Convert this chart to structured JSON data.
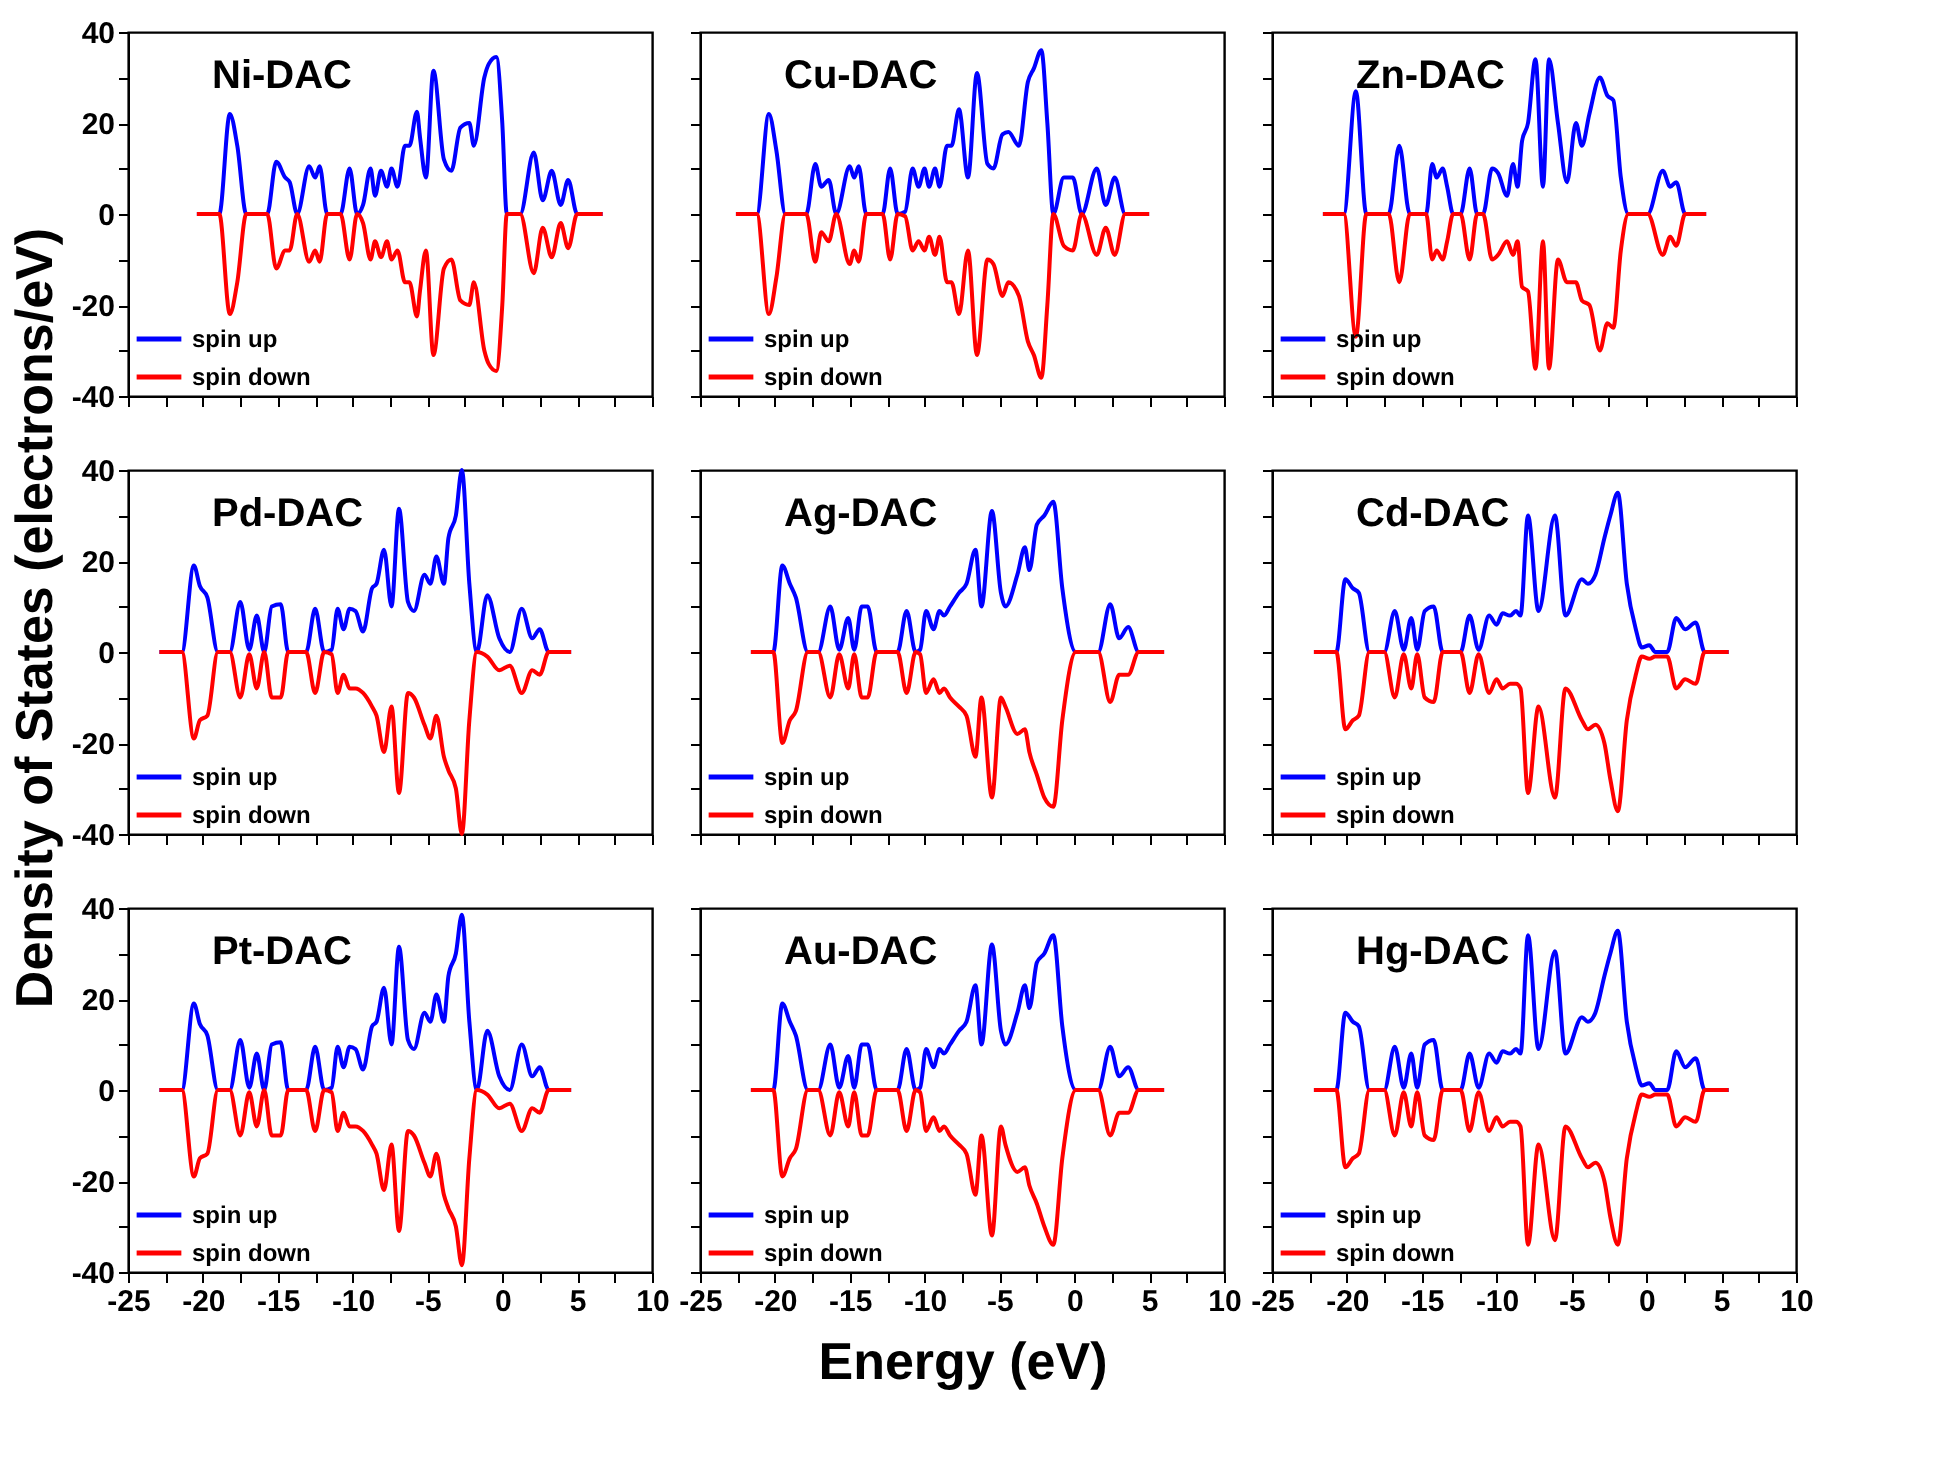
{
  "chart_data": [
    {
      "type": "line",
      "title": "Ni-DAC",
      "tick_labels": "y",
      "legend": "bottom left",
      "xlim": [
        -25,
        10
      ],
      "ylim": [
        -40,
        40
      ],
      "xticks": [
        -25,
        {
          "value": -22.5,
          "label": null
        },
        -20,
        {
          "value": -17.5,
          "label": null
        },
        -15,
        {
          "value": -12.5,
          "label": null
        },
        -10,
        {
          "value": -7.5,
          "label": null
        },
        -5,
        {
          "value": -2.5,
          "label": null
        },
        0,
        {
          "value": 2.5,
          "label": null
        },
        5,
        {
          "value": 7.5,
          "label": null
        },
        10
      ],
      "yticks": [
        -40,
        {
          "value": -30,
          "label": null
        },
        -20,
        {
          "value": -10,
          "label": null
        },
        0,
        {
          "value": 10,
          "label": null
        },
        20,
        {
          "value": 30,
          "label": null
        },
        40
      ],
      "x": [
        -20.4,
        -18.9,
        -18.2,
        -17.7,
        -17.1,
        -15.7,
        -15.1,
        -14.5,
        -14.2,
        -13.7,
        -12.9,
        -12.5,
        -12.2,
        -11.7,
        -10.8,
        -10.2,
        -9.7,
        -9.3,
        -8.8,
        -8.5,
        -8.1,
        -7.7,
        -7.4,
        -7.0,
        -6.5,
        -6.2,
        -5.7,
        -5.5,
        -5.1,
        -4.6,
        -3.9,
        -3.4,
        -2.8,
        -2.2,
        -1.9,
        -1.2,
        -0.9,
        -0.4,
        0.0,
        0.3,
        1.2,
        2.1,
        2.7,
        3.3,
        3.9,
        4.4,
        5.0,
        6.7
      ],
      "series": [
        {
          "name": "spin up",
          "color": "#0000ff",
          "values": [
            0,
            0,
            22,
            15,
            0,
            0,
            11.5,
            8,
            7,
            0,
            10.5,
            8,
            10.5,
            0,
            0,
            10,
            0,
            2,
            10,
            4,
            9.5,
            6,
            10,
            6,
            15,
            15,
            22.5,
            17,
            8,
            31.5,
            12,
            9.5,
            19,
            20,
            15,
            30,
            33,
            34.5,
            20,
            0,
            0,
            13.5,
            3,
            9.5,
            2,
            7.5,
            0,
            0
          ]
        },
        {
          "name": "spin down",
          "color": "#ff0000",
          "values": [
            0,
            0,
            -22,
            -15,
            0,
            0,
            -12,
            -8,
            -8,
            0,
            -10.5,
            -8,
            -10.5,
            0,
            0,
            -10,
            0,
            -2,
            -10,
            -6,
            -9.5,
            -6,
            -10,
            -8,
            -15,
            -15,
            -22.5,
            -17,
            -8,
            -31,
            -12,
            -10,
            -19,
            -20,
            -15,
            -30,
            -33,
            -34.5,
            -20,
            0,
            0,
            -13,
            -3,
            -9.5,
            -2,
            -7.5,
            0,
            0
          ]
        }
      ]
    },
    {
      "type": "line",
      "title": "Cu-DAC",
      "tick_labels": false,
      "legend": "bottom left",
      "xlim": [
        -25,
        10
      ],
      "ylim": [
        -40,
        40
      ],
      "xticks": [
        -25,
        {
          "value": -22.5,
          "label": null
        },
        -20,
        {
          "value": -17.5,
          "label": null
        },
        -15,
        {
          "value": -12.5,
          "label": null
        },
        -10,
        {
          "value": -7.5,
          "label": null
        },
        -5,
        {
          "value": -2.5,
          "label": null
        },
        0,
        {
          "value": 2.5,
          "label": null
        },
        5,
        {
          "value": 7.5,
          "label": null
        },
        10
      ],
      "yticks": [
        -40,
        {
          "value": -30,
          "label": null
        },
        -20,
        {
          "value": -10,
          "label": null
        },
        0,
        {
          "value": 10,
          "label": null
        },
        20,
        {
          "value": 30,
          "label": null
        },
        40
      ],
      "x": [
        -22.6,
        -21.2,
        -20.4,
        -19.9,
        -19.3,
        -17.9,
        -17.3,
        -16.9,
        -16.4,
        -15.9,
        -15.0,
        -14.7,
        -14.4,
        -13.9,
        -12.8,
        -12.3,
        -11.8,
        -11.3,
        -10.8,
        -10.4,
        -10.0,
        -9.7,
        -9.3,
        -9.0,
        -8.5,
        -8.2,
        -7.7,
        -7.1,
        -6.5,
        -5.8,
        -5.4,
        -4.8,
        -4.4,
        -3.7,
        -3.1,
        -2.7,
        -2.2,
        -1.8,
        -1.4,
        -0.7,
        -0.1,
        0.5,
        1.5,
        2.1,
        2.7,
        3.4,
        5.0
      ],
      "series": [
        {
          "name": "spin up",
          "color": "#0000ff",
          "values": [
            0,
            0,
            22,
            14,
            0,
            0,
            11,
            6,
            7.5,
            0,
            10.5,
            8,
            10.5,
            0,
            0,
            10,
            0,
            0.5,
            10,
            6,
            10,
            6,
            10,
            6,
            15,
            15,
            23,
            8,
            31,
            11,
            10,
            17.5,
            18,
            15,
            29,
            32,
            36,
            20,
            0,
            8,
            8,
            0,
            10,
            2,
            8,
            0,
            0
          ]
        },
        {
          "name": "spin down",
          "color": "#ff0000",
          "values": [
            0,
            0,
            -22,
            -14,
            0,
            0,
            -10.5,
            -4,
            -6,
            0,
            -11,
            -8,
            -10.5,
            0,
            0,
            -10,
            0,
            -0.5,
            -8,
            -6,
            -8,
            -5,
            -9,
            -5,
            -15,
            -15,
            -22,
            -8,
            -31,
            -10,
            -11,
            -18,
            -15,
            -18,
            -28,
            -31,
            -36,
            -20,
            0,
            -7,
            -8,
            0,
            -9,
            -3,
            -9,
            0,
            0
          ]
        }
      ]
    },
    {
      "type": "line",
      "title": "Zn-DAC",
      "tick_labels": false,
      "legend": "bottom left",
      "xlim": [
        -25,
        10
      ],
      "ylim": [
        -40,
        40
      ],
      "xticks": [
        -25,
        {
          "value": -22.5,
          "label": null
        },
        -20,
        {
          "value": -17.5,
          "label": null
        },
        -15,
        {
          "value": -12.5,
          "label": null
        },
        -10,
        {
          "value": -7.5,
          "label": null
        },
        -5,
        {
          "value": -2.5,
          "label": null
        },
        0,
        {
          "value": 2.5,
          "label": null
        },
        5,
        {
          "value": 7.5,
          "label": null
        },
        10
      ],
      "yticks": [
        -40,
        {
          "value": -30,
          "label": null
        },
        -20,
        {
          "value": -10,
          "label": null
        },
        0,
        {
          "value": 10,
          "label": null
        },
        20,
        {
          "value": 30,
          "label": null
        },
        40
      ],
      "x": [
        -21.6,
        -20.2,
        -19.4,
        -18.7,
        -17.2,
        -16.5,
        -15.8,
        -14.7,
        -14.3,
        -14.0,
        -13.6,
        -13.3,
        -12.9,
        -12.4,
        -11.8,
        -11.3,
        -10.9,
        -10.3,
        -9.9,
        -9.3,
        -8.9,
        -8.6,
        -8.3,
        -7.9,
        -7.4,
        -6.9,
        -6.5,
        -5.9,
        -5.3,
        -4.7,
        -4.3,
        -3.8,
        -3.1,
        -2.6,
        -2.2,
        -1.7,
        -1.2,
        0.1,
        1.1,
        1.6,
        2.0,
        2.6,
        4.0
      ],
      "series": [
        {
          "name": "spin up",
          "color": "#0000ff",
          "values": [
            0,
            0,
            27,
            0,
            0,
            15,
            0,
            0,
            11,
            8,
            10,
            6,
            0,
            0,
            10,
            0,
            0,
            10,
            9,
            4,
            11,
            6,
            16,
            20,
            34,
            6,
            34,
            20,
            7,
            20,
            15,
            22,
            30,
            26,
            25,
            8,
            0,
            0,
            9.5,
            6,
            7,
            0,
            0
          ]
        },
        {
          "name": "spin down",
          "color": "#ff0000",
          "values": [
            0,
            0,
            -27,
            0,
            0,
            -15,
            0,
            0,
            -10,
            -8,
            -10,
            -6,
            0,
            0,
            -10,
            0,
            0,
            -10,
            -9,
            -6,
            -9,
            -6,
            -16,
            -17,
            -34,
            -6,
            -34,
            -10,
            -15,
            -15,
            -19,
            -20,
            -30,
            -24,
            -25,
            -8,
            0,
            0,
            -9,
            -5,
            -7,
            0,
            0
          ]
        }
      ]
    },
    {
      "type": "line",
      "title": "Pd-DAC",
      "tick_labels": "y",
      "legend": "bottom left",
      "xlim": [
        -25,
        10
      ],
      "ylim": [
        -40,
        40
      ],
      "ylabel": "Density of States (electrons/eV)",
      "xticks": [
        -25,
        {
          "value": -22.5,
          "label": null
        },
        -20,
        {
          "value": -17.5,
          "label": null
        },
        -15,
        {
          "value": -12.5,
          "label": null
        },
        -10,
        {
          "value": -7.5,
          "label": null
        },
        -5,
        {
          "value": -2.5,
          "label": null
        },
        0,
        {
          "value": 2.5,
          "label": null
        },
        5,
        {
          "value": 7.5,
          "label": null
        },
        10
      ],
      "yticks": [
        -40,
        {
          "value": -30,
          "label": null
        },
        -20,
        {
          "value": -10,
          "label": null
        },
        0,
        {
          "value": 10,
          "label": null
        },
        20,
        {
          "value": 30,
          "label": null
        },
        40
      ],
      "x": [
        -22.9,
        -21.4,
        -20.6,
        -20.2,
        -19.7,
        -19.0,
        -18.2,
        -17.5,
        -16.9,
        -16.4,
        -15.9,
        -15.4,
        -14.8,
        -14.3,
        -13.1,
        -12.5,
        -11.9,
        -11.4,
        -11.0,
        -10.6,
        -10.2,
        -9.8,
        -9.3,
        -8.7,
        -8.4,
        -7.9,
        -7.4,
        -6.9,
        -6.3,
        -5.9,
        -5.2,
        -4.8,
        -4.4,
        -3.9,
        -3.6,
        -3.1,
        -2.7,
        -2.2,
        -1.7,
        -1.0,
        -0.2,
        0.5,
        1.3,
        2.0,
        2.5,
        3.1,
        4.6
      ],
      "series": [
        {
          "name": "spin up",
          "color": "#0000ff",
          "values": [
            0,
            0,
            19,
            14.5,
            12,
            0,
            0,
            11,
            0.5,
            8,
            0,
            10,
            10.5,
            0,
            0,
            9.5,
            0,
            0.5,
            9.5,
            5,
            9.5,
            9,
            4.5,
            14,
            15,
            22.5,
            10,
            31.5,
            11,
            9,
            17,
            15,
            21,
            15,
            25,
            30,
            40,
            15,
            0,
            12.5,
            3,
            0,
            9.5,
            3,
            5,
            0,
            0
          ]
        },
        {
          "name": "spin down",
          "color": "#ff0000",
          "values": [
            0,
            0,
            -19,
            -15,
            -14,
            0,
            0,
            -10,
            -0.5,
            -8,
            0,
            -10,
            -10,
            0,
            0,
            -9,
            0,
            -0.5,
            -9,
            -5,
            -8,
            -8,
            -9,
            -12,
            -14,
            -22,
            -12,
            -31,
            -9,
            -10,
            -16,
            -19,
            -14,
            -23,
            -26,
            -30,
            -40,
            -15,
            0,
            -1,
            -4,
            -3,
            -9,
            -4,
            -5,
            0,
            0
          ]
        }
      ]
    },
    {
      "type": "line",
      "title": "Ag-DAC",
      "tick_labels": false,
      "legend": "bottom left",
      "xlim": [
        -25,
        10
      ],
      "ylim": [
        -40,
        40
      ],
      "xticks": [
        -25,
        {
          "value": -22.5,
          "label": null
        },
        -20,
        {
          "value": -17.5,
          "label": null
        },
        -15,
        {
          "value": -12.5,
          "label": null
        },
        -10,
        {
          "value": -7.5,
          "label": null
        },
        -5,
        {
          "value": -2.5,
          "label": null
        },
        0,
        {
          "value": 2.5,
          "label": null
        },
        5,
        {
          "value": 7.5,
          "label": null
        },
        10
      ],
      "yticks": [
        -40,
        {
          "value": -30,
          "label": null
        },
        -20,
        {
          "value": -10,
          "label": null
        },
        0,
        {
          "value": 10,
          "label": null
        },
        20,
        {
          "value": 30,
          "label": null
        },
        40
      ],
      "x": [
        -21.6,
        -20.1,
        -19.5,
        -19.0,
        -18.6,
        -17.8,
        -17.1,
        -16.3,
        -15.7,
        -15.1,
        -14.7,
        -14.2,
        -13.8,
        -13.2,
        -11.8,
        -11.2,
        -10.6,
        -10.3,
        -9.9,
        -9.4,
        -9.0,
        -8.7,
        -8.3,
        -7.7,
        -7.2,
        -6.6,
        -6.2,
        -5.5,
        -4.9,
        -4.6,
        -3.8,
        -3.3,
        -3.0,
        -2.5,
        -2.0,
        -1.4,
        -0.8,
        0.1,
        1.6,
        2.4,
        3.0,
        3.6,
        4.3,
        6.0
      ],
      "series": [
        {
          "name": "spin up",
          "color": "#0000ff",
          "values": [
            0,
            0,
            19,
            15,
            12,
            0,
            0,
            10,
            0.5,
            7.5,
            0.5,
            10,
            10,
            0,
            0,
            9,
            0,
            0.5,
            9,
            5,
            9,
            8,
            10,
            13,
            15,
            22.5,
            10,
            31,
            13,
            10,
            17,
            23,
            18,
            28,
            30,
            33,
            14,
            0,
            0,
            10.5,
            3,
            5.5,
            0,
            0
          ]
        },
        {
          "name": "spin down",
          "color": "#ff0000",
          "values": [
            0,
            0,
            -20,
            -15,
            -13,
            0,
            0,
            -10,
            -0.5,
            -8,
            -0.5,
            -10,
            -10,
            0,
            0,
            -9,
            0,
            -0.5,
            -9,
            -6,
            -9,
            -8,
            -10,
            -12,
            -14,
            -23,
            -10,
            -32,
            -10,
            -12,
            -18,
            -17,
            -22,
            -27,
            -32,
            -34,
            -15,
            0,
            0,
            -11,
            -5,
            -5,
            0,
            0
          ]
        }
      ]
    },
    {
      "type": "line",
      "title": "Cd-DAC",
      "tick_labels": false,
      "legend": "bottom left",
      "xlim": [
        -25,
        10
      ],
      "ylim": [
        -40,
        40
      ],
      "xticks": [
        -25,
        {
          "value": -22.5,
          "label": null
        },
        -20,
        {
          "value": -17.5,
          "label": null
        },
        -15,
        {
          "value": -12.5,
          "label": null
        },
        -10,
        {
          "value": -7.5,
          "label": null
        },
        -5,
        {
          "value": -2.5,
          "label": null
        },
        0,
        {
          "value": 2.5,
          "label": null
        },
        5,
        {
          "value": 7.5,
          "label": null
        },
        10
      ],
      "yticks": [
        -40,
        {
          "value": -30,
          "label": null
        },
        -20,
        {
          "value": -10,
          "label": null
        },
        0,
        {
          "value": 10,
          "label": null
        },
        20,
        {
          "value": 30,
          "label": null
        },
        40
      ],
      "x": [
        -22.2,
        -20.7,
        -20.1,
        -19.6,
        -19.2,
        -18.5,
        -17.5,
        -16.8,
        -16.2,
        -15.7,
        -15.3,
        -14.8,
        -14.2,
        -13.6,
        -12.4,
        -11.8,
        -11.2,
        -10.5,
        -10.0,
        -9.6,
        -9.1,
        -8.7,
        -8.4,
        -7.9,
        -7.2,
        -6.1,
        -5.4,
        -4.3,
        -3.9,
        -3.4,
        -2.8,
        -2.4,
        -1.9,
        -1.3,
        -0.7,
        -0.3,
        0.2,
        0.6,
        1.4,
        2.0,
        2.6,
        3.3,
        3.9,
        5.5
      ],
      "series": [
        {
          "name": "spin up",
          "color": "#0000ff",
          "values": [
            0,
            0,
            16,
            14,
            13,
            0,
            0,
            9,
            0.5,
            7.5,
            0.5,
            9,
            10,
            0,
            0,
            8,
            0.5,
            8,
            6,
            8.5,
            8,
            9,
            8,
            30,
            9,
            30,
            8,
            16,
            15,
            17,
            25,
            30,
            35,
            15,
            5,
            1,
            1.5,
            0,
            0,
            7.5,
            5,
            6.5,
            0,
            0
          ]
        },
        {
          "name": "spin down",
          "color": "#ff0000",
          "values": [
            0,
            0,
            -17,
            -15,
            -14,
            0,
            0,
            -10,
            -0.5,
            -8,
            -0.5,
            -10,
            -11,
            0,
            0,
            -9,
            -0.5,
            -9,
            -6,
            -8,
            -7,
            -7,
            -8,
            -31,
            -12,
            -32,
            -8,
            -15,
            -17,
            -16,
            -20,
            -28,
            -35,
            -15,
            -5,
            -1,
            -1.5,
            -1,
            -1,
            -8,
            -6,
            -7,
            0,
            0
          ]
        }
      ]
    },
    {
      "type": "line",
      "title": "Pt-DAC",
      "legend": "bottom left",
      "xlim": [
        -25,
        10
      ],
      "ylim": [
        -40,
        40
      ],
      "xticks": [
        -25,
        {
          "value": -22.5,
          "label": null
        },
        -20,
        {
          "value": -17.5,
          "label": null
        },
        -15,
        {
          "value": -12.5,
          "label": null
        },
        -10,
        {
          "value": -7.5,
          "label": null
        },
        -5,
        {
          "value": -2.5,
          "label": null
        },
        0,
        {
          "value": 2.5,
          "label": null
        },
        5,
        {
          "value": 7.5,
          "label": null
        },
        10
      ],
      "yticks": [
        -40,
        {
          "value": -30,
          "label": null
        },
        -20,
        {
          "value": -10,
          "label": null
        },
        0,
        {
          "value": 10,
          "label": null
        },
        20,
        {
          "value": 30,
          "label": null
        },
        40
      ],
      "x": [
        -22.9,
        -21.4,
        -20.6,
        -20.2,
        -19.7,
        -19.0,
        -18.2,
        -17.5,
        -16.9,
        -16.4,
        -15.9,
        -15.4,
        -14.8,
        -14.3,
        -13.1,
        -12.5,
        -11.9,
        -11.4,
        -11.0,
        -10.6,
        -10.2,
        -9.8,
        -9.3,
        -8.7,
        -8.4,
        -7.9,
        -7.4,
        -6.9,
        -6.3,
        -5.9,
        -5.2,
        -4.8,
        -4.4,
        -3.9,
        -3.6,
        -3.1,
        -2.7,
        -2.2,
        -1.7,
        -1.0,
        -0.2,
        0.5,
        1.3,
        2.0,
        2.5,
        3.1,
        4.6
      ],
      "series": [
        {
          "name": "spin up",
          "color": "#0000ff",
          "values": [
            0,
            0,
            19,
            14.5,
            12,
            0,
            0,
            11,
            0.5,
            8,
            0,
            10,
            10.5,
            0,
            0,
            9.5,
            0,
            0.5,
            9.5,
            5,
            9.5,
            9,
            4.5,
            14,
            15,
            22.5,
            10,
            31.5,
            11,
            9,
            17,
            15,
            21,
            15,
            25,
            30,
            38.5,
            15,
            0,
            13,
            3,
            0,
            10,
            3,
            5,
            0,
            0
          ]
        },
        {
          "name": "spin down",
          "color": "#ff0000",
          "values": [
            0,
            0,
            -19,
            -15,
            -14,
            0,
            0,
            -10,
            -0.5,
            -8,
            0,
            -10,
            -10,
            0,
            0,
            -9,
            0,
            -0.5,
            -9,
            -5,
            -8,
            -8,
            -9,
            -12,
            -14,
            -22,
            -12,
            -31,
            -9,
            -10,
            -16,
            -19,
            -14,
            -23,
            -26,
            -30,
            -38.5,
            -15,
            0,
            -1,
            -4,
            -3,
            -9,
            -4,
            -5,
            0,
            0
          ]
        }
      ]
    },
    {
      "type": "line",
      "title": "Au-DAC",
      "tick_labels": "x",
      "legend": "bottom left",
      "xlim": [
        -25,
        10
      ],
      "ylim": [
        -40,
        40
      ],
      "xlabel": "Energy (eV)",
      "xticks": [
        -25,
        {
          "value": -22.5,
          "label": null
        },
        -20,
        {
          "value": -17.5,
          "label": null
        },
        -15,
        {
          "value": -12.5,
          "label": null
        },
        -10,
        {
          "value": -7.5,
          "label": null
        },
        -5,
        {
          "value": -2.5,
          "label": null
        },
        0,
        {
          "value": 2.5,
          "label": null
        },
        5,
        {
          "value": 7.5,
          "label": null
        },
        10
      ],
      "yticks": [
        -40,
        {
          "value": -30,
          "label": null
        },
        -20,
        {
          "value": -10,
          "label": null
        },
        0,
        {
          "value": 10,
          "label": null
        },
        20,
        {
          "value": 30,
          "label": null
        },
        40
      ],
      "x": [
        -21.6,
        -20.1,
        -19.5,
        -19.0,
        -18.6,
        -17.8,
        -17.1,
        -16.3,
        -15.7,
        -15.1,
        -14.7,
        -14.2,
        -13.8,
        -13.2,
        -11.8,
        -11.2,
        -10.6,
        -10.3,
        -9.9,
        -9.4,
        -9.0,
        -8.7,
        -8.3,
        -7.7,
        -7.2,
        -6.6,
        -6.2,
        -5.5,
        -4.9,
        -4.6,
        -3.8,
        -3.3,
        -3.0,
        -2.5,
        -2.0,
        -1.4,
        -0.8,
        0.1,
        1.6,
        2.4,
        3.0,
        3.6,
        4.3,
        6.0
      ],
      "series": [
        {
          "name": "spin up",
          "color": "#0000ff",
          "values": [
            0,
            0,
            19,
            15,
            12,
            0,
            0,
            10,
            0.5,
            7.5,
            0.5,
            10,
            10,
            0,
            0,
            9,
            0,
            0.5,
            9,
            5,
            9,
            8,
            10,
            13,
            15,
            23,
            10,
            32,
            13,
            10,
            17,
            23,
            18,
            28,
            30,
            34,
            14,
            0,
            0,
            9.5,
            3,
            5,
            0,
            0
          ]
        },
        {
          "name": "spin down",
          "color": "#ff0000",
          "values": [
            0,
            0,
            -19,
            -15,
            -13,
            0,
            0,
            -10,
            -0.5,
            -8,
            -0.5,
            -10,
            -10,
            0,
            0,
            -9,
            0,
            -0.5,
            -9,
            -6,
            -9,
            -8,
            -10,
            -12,
            -14,
            -23,
            -10,
            -32,
            -8,
            -12,
            -18,
            -17,
            -21,
            -25,
            -30,
            -34,
            -15,
            0,
            0,
            -10,
            -5,
            -5,
            0,
            0
          ]
        }
      ]
    },
    {
      "type": "line",
      "title": "Hg-DAC",
      "tick_labels": "x",
      "legend": "bottom left",
      "xlim": [
        -25,
        10
      ],
      "ylim": [
        -40,
        40
      ],
      "xticks": [
        -25,
        {
          "value": -22.5,
          "label": null
        },
        -20,
        {
          "value": -17.5,
          "label": null
        },
        -15,
        {
          "value": -12.5,
          "label": null
        },
        -10,
        {
          "value": -7.5,
          "label": null
        },
        -5,
        {
          "value": -2.5,
          "label": null
        },
        0,
        {
          "value": 2.5,
          "label": null
        },
        5,
        {
          "value": 7.5,
          "label": null
        },
        10
      ],
      "yticks": [
        -40,
        {
          "value": -30,
          "label": null
        },
        -20,
        {
          "value": -10,
          "label": null
        },
        0,
        {
          "value": 10,
          "label": null
        },
        20,
        {
          "value": 30,
          "label": null
        },
        40
      ],
      "x": [
        -22.2,
        -20.7,
        -20.1,
        -19.6,
        -19.2,
        -18.5,
        -17.5,
        -16.8,
        -16.2,
        -15.7,
        -15.3,
        -14.8,
        -14.2,
        -13.6,
        -12.4,
        -11.8,
        -11.2,
        -10.5,
        -10.0,
        -9.6,
        -9.1,
        -8.7,
        -8.4,
        -7.9,
        -7.2,
        -6.1,
        -5.4,
        -4.3,
        -3.9,
        -3.4,
        -2.8,
        -2.4,
        -1.9,
        -1.3,
        -0.7,
        -0.3,
        0.2,
        0.6,
        1.4,
        2.0,
        2.6,
        3.3,
        3.9,
        5.5
      ],
      "series": [
        {
          "name": "spin up",
          "color": "#0000ff",
          "values": [
            0,
            0,
            17,
            15,
            14,
            0,
            0,
            9.5,
            0.5,
            8,
            0.5,
            10,
            11,
            0,
            0,
            8,
            0.5,
            8,
            6,
            8.5,
            8,
            9,
            8,
            34,
            9,
            30.5,
            8,
            16,
            15,
            17,
            25,
            30,
            35,
            15,
            5,
            1,
            1.5,
            0,
            0,
            8.5,
            5,
            7,
            0,
            0
          ]
        },
        {
          "name": "spin down",
          "color": "#ff0000",
          "values": [
            0,
            0,
            -17,
            -15,
            -14,
            0,
            0,
            -10,
            -0.5,
            -8,
            -0.5,
            -10,
            -11,
            0,
            0,
            -9,
            -0.5,
            -9,
            -6,
            -8,
            -7,
            -7,
            -8,
            -34,
            -12,
            -33,
            -8,
            -15,
            -17,
            -16,
            -20,
            -28,
            -34,
            -15,
            -5,
            -1,
            -1.5,
            -1,
            -1,
            -8,
            -6,
            -7,
            0,
            0
          ]
        }
      ]
    }
  ]
}
